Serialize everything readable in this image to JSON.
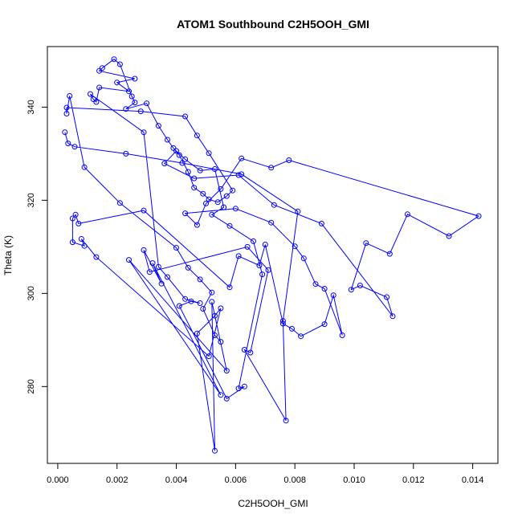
{
  "chart_data": {
    "type": "scatter",
    "title": "ATOM1 Southbound C2H5OOH_GMI",
    "xlabel": "C2H5OOH_GMI",
    "ylabel": "Theta (K)",
    "xlim": [
      -0.00035,
      0.01485
    ],
    "ylim": [
      263.5,
      353.0
    ],
    "xticks": [
      "0.000",
      "0.002",
      "0.004",
      "0.006",
      "0.008",
      "0.010",
      "0.012",
      "0.014"
    ],
    "xtick_values": [
      0.0,
      0.002,
      0.004,
      0.006,
      0.008,
      0.01,
      0.012,
      0.014
    ],
    "yticks": [
      "280",
      "300",
      "320",
      "340"
    ],
    "ytick_values": [
      280,
      300,
      320,
      340
    ],
    "color": "#0000ff",
    "grid": false,
    "series": [
      {
        "values": [
          [
            0.00024,
            334.6
          ],
          [
            0.00035,
            332.2
          ],
          [
            0.00057,
            331.5
          ],
          [
            0.0023,
            330.0
          ],
          [
            0.0042,
            328.0
          ],
          [
            0.0062,
            325.6
          ],
          [
            0.0081,
            317.6
          ],
          [
            0.0076,
            294.1
          ],
          [
            0.0077,
            272.7
          ],
          [
            0.0063,
            287.9
          ],
          [
            0.0065,
            287.3
          ],
          [
            0.0071,
            305.0
          ],
          [
            0.0064,
            310.0
          ],
          [
            0.0031,
            304.6
          ],
          [
            0.0029,
            309.3
          ],
          [
            0.0035,
            302.1
          ],
          [
            0.0032,
            306.5
          ],
          [
            0.0055,
            278.2
          ],
          [
            0.0024,
            307.2
          ],
          [
            0.0057,
            283.4
          ],
          [
            0.0052,
            298.2
          ],
          [
            0.0053,
            266.2
          ],
          [
            0.0047,
            291.4
          ],
          [
            0.0053,
            295.2
          ],
          [
            0.0055,
            296.8
          ],
          [
            0.0051,
            286.5
          ],
          [
            0.0013,
            307.8
          ],
          [
            0.0008,
            311.7
          ],
          [
            0.0009,
            310.2
          ],
          [
            0.0005,
            311.0
          ],
          [
            0.0005,
            316.1
          ],
          [
            0.0006,
            316.9
          ],
          [
            0.0007,
            315.0
          ],
          [
            0.0029,
            317.8
          ],
          [
            0.0058,
            301.3
          ],
          [
            0.0061,
            308.0
          ],
          [
            0.0068,
            306.0
          ],
          [
            0.007,
            310.5
          ],
          [
            0.0076,
            293.5
          ],
          [
            0.0079,
            292.4
          ],
          [
            0.0082,
            290.8
          ],
          [
            0.009,
            293.4
          ],
          [
            0.0093,
            299.6
          ],
          [
            0.0096,
            291.0
          ],
          [
            0.009,
            301.0
          ],
          [
            0.0087,
            302.0
          ],
          [
            0.0083,
            307.5
          ],
          [
            0.008,
            310.1
          ],
          [
            0.0072,
            315.2
          ],
          [
            0.006,
            318.2
          ],
          [
            0.0043,
            317.2
          ],
          [
            0.0047,
            314.7
          ],
          [
            0.005,
            319.3
          ],
          [
            0.0055,
            322.4
          ],
          [
            0.0062,
            329.0
          ],
          [
            0.0072,
            327.0
          ],
          [
            0.0078,
            328.6
          ],
          [
            0.0142,
            316.6
          ],
          [
            0.0132,
            312.3
          ],
          [
            0.0118,
            317.0
          ],
          [
            0.0112,
            308.5
          ],
          [
            0.0104,
            310.8
          ],
          [
            0.0099,
            300.8
          ],
          [
            0.0102,
            301.7
          ],
          [
            0.0111,
            299.2
          ],
          [
            0.0113,
            295.1
          ],
          [
            0.0089,
            315.0
          ],
          [
            0.0073,
            319.0
          ],
          [
            0.0061,
            325.4
          ],
          [
            0.0046,
            324.7
          ],
          [
            0.0036,
            327.9
          ],
          [
            0.004,
            330.6
          ],
          [
            0.0043,
            328.8
          ],
          [
            0.0048,
            326.4
          ],
          [
            0.0053,
            326.7
          ],
          [
            0.0056,
            318.5
          ],
          [
            0.0052,
            316.9
          ],
          [
            0.0058,
            314.5
          ],
          [
            0.0066,
            311.2
          ],
          [
            0.0069,
            304.1
          ],
          [
            0.0061,
            279.6
          ],
          [
            0.0063,
            280.0
          ],
          [
            0.0057,
            277.4
          ],
          [
            0.0041,
            297.3
          ],
          [
            0.0045,
            298.3
          ],
          [
            0.0048,
            297.9
          ],
          [
            0.0043,
            298.8
          ],
          [
            0.0037,
            303.5
          ],
          [
            0.0034,
            305.7
          ],
          [
            0.0029,
            334.6
          ],
          [
            0.0011,
            342.8
          ],
          [
            0.0012,
            341.7
          ],
          [
            0.0013,
            341.1
          ],
          [
            0.0014,
            344.2
          ],
          [
            0.0024,
            343.4
          ],
          [
            0.002,
            345.3
          ],
          [
            0.0026,
            346.1
          ],
          [
            0.0014,
            347.8
          ],
          [
            0.0015,
            348.4
          ],
          [
            0.0019,
            350.3
          ],
          [
            0.0021,
            349.2
          ],
          [
            0.0025,
            342.3
          ],
          [
            0.0026,
            341.0
          ],
          [
            0.0023,
            339.6
          ],
          [
            0.003,
            340.8
          ],
          [
            0.0034,
            336.0
          ],
          [
            0.0037,
            333.0
          ],
          [
            0.0039,
            331.2
          ],
          [
            0.0041,
            329.7
          ],
          [
            0.0044,
            326.1
          ],
          [
            0.0046,
            322.7
          ],
          [
            0.0049,
            321.4
          ],
          [
            0.0051,
            320.2
          ],
          [
            0.0054,
            319.6
          ],
          [
            0.0057,
            320.9
          ],
          [
            0.0059,
            322.1
          ],
          [
            0.0051,
            330.1
          ],
          [
            0.0047,
            333.9
          ],
          [
            0.0043,
            338.0
          ],
          [
            0.0028,
            339.1
          ],
          [
            0.0003,
            339.9
          ],
          [
            0.0003,
            338.6
          ],
          [
            0.0004,
            342.4
          ],
          [
            0.0009,
            327.1
          ],
          [
            0.0021,
            319.4
          ],
          [
            0.004,
            309.8
          ],
          [
            0.0044,
            305.5
          ],
          [
            0.0048,
            303.0
          ],
          [
            0.0052,
            300.2
          ],
          [
            0.0049,
            296.7
          ],
          [
            0.0053,
            291.0
          ],
          [
            0.0055,
            289.6
          ]
        ]
      }
    ]
  }
}
